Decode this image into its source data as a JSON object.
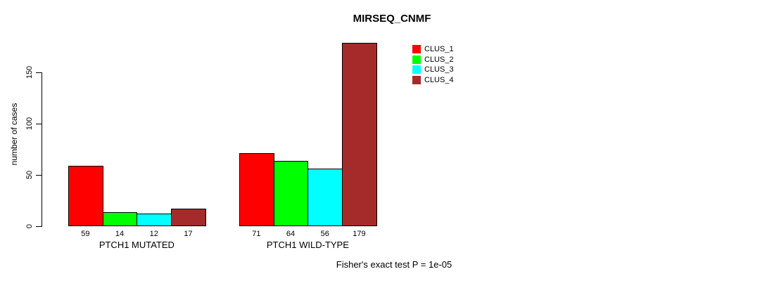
{
  "chart_data": {
    "type": "bar",
    "title": "MIRSEQ_CNMF",
    "ylabel": "number of cases",
    "xlabel": "",
    "categories": [
      "PTCH1 MUTATED",
      "PTCH1 WILD-TYPE"
    ],
    "series": [
      {
        "name": "CLUS_1",
        "color": "#ff0000",
        "values": [
          59,
          71
        ]
      },
      {
        "name": "CLUS_2",
        "color": "#00ff00",
        "values": [
          14,
          64
        ]
      },
      {
        "name": "CLUS_3",
        "color": "#00ffff",
        "values": [
          12,
          56
        ]
      },
      {
        "name": "CLUS_4",
        "color": "#a52a2a",
        "values": [
          17,
          179
        ]
      }
    ],
    "bar_value_labels": [
      [
        59,
        14,
        12,
        17
      ],
      [
        71,
        64,
        56,
        179
      ]
    ],
    "yticks": [
      0,
      50,
      100,
      150
    ],
    "ylim": [
      0,
      180
    ],
    "grid": false,
    "legend_position": "top-right",
    "annotation": "Fisher's exact test P = 1e-05"
  }
}
